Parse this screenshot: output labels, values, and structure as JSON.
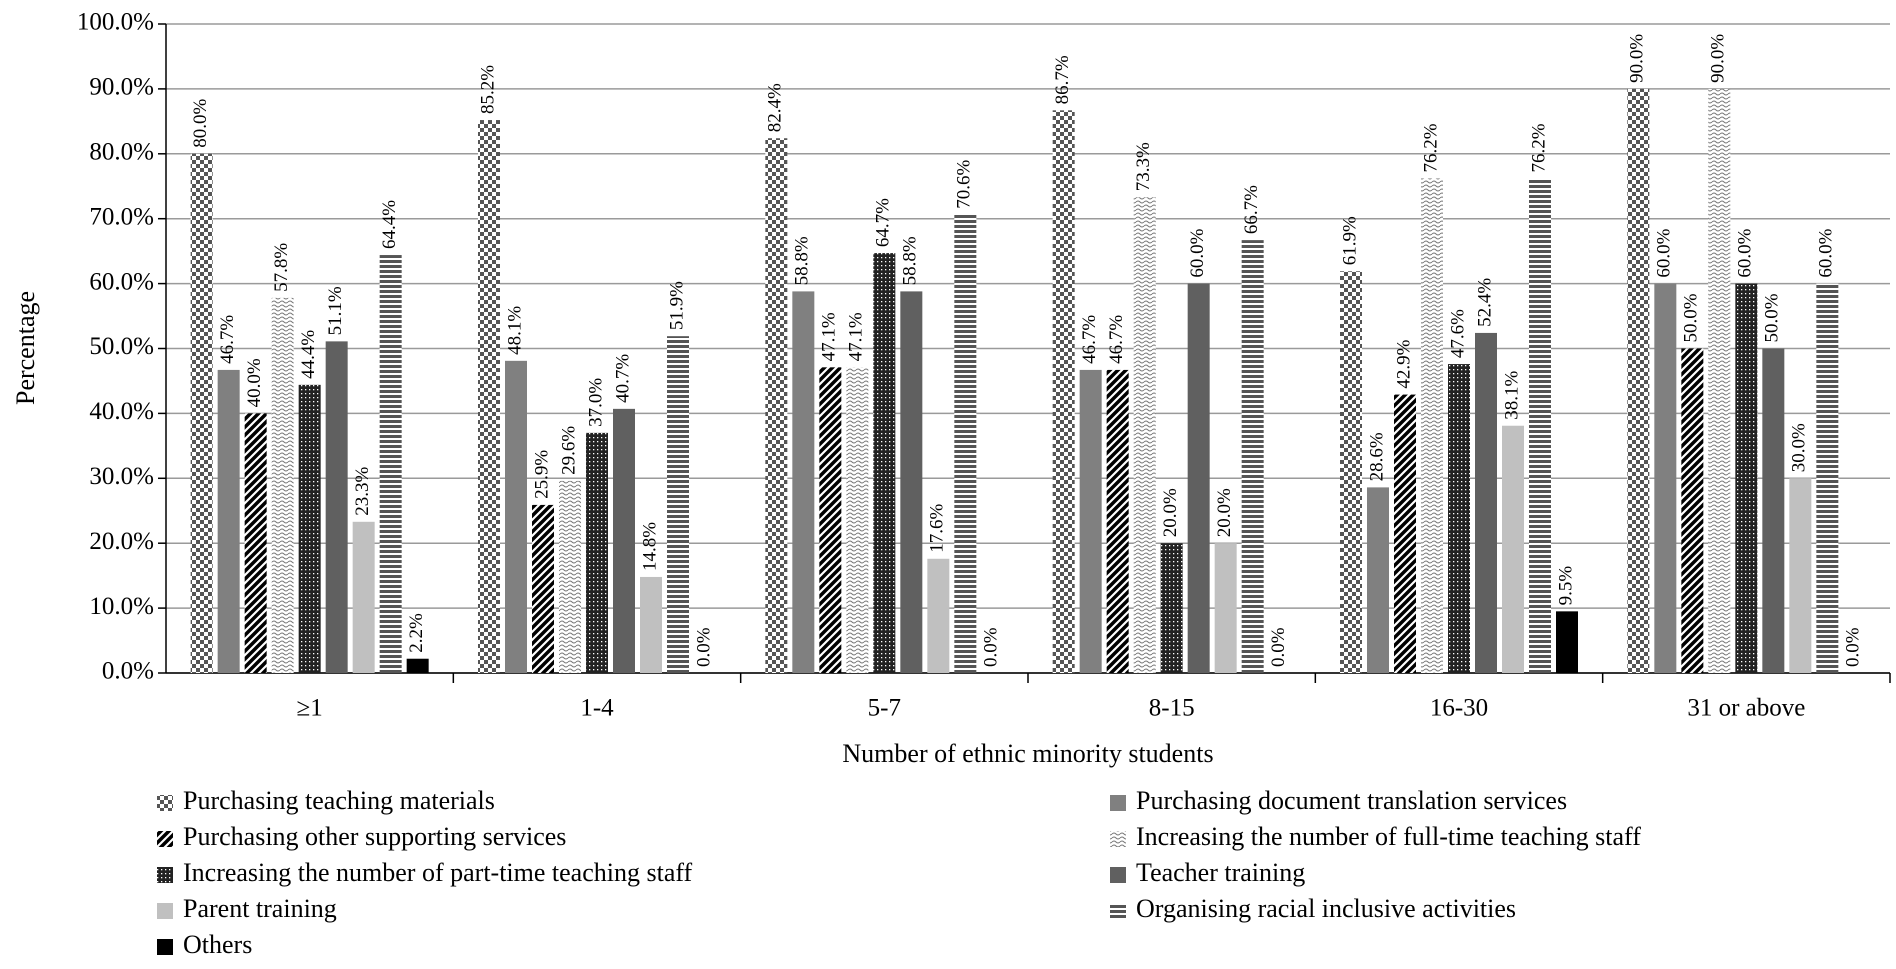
{
  "chart_data": {
    "type": "bar",
    "xlabel": "Number of ethnic minority students",
    "ylabel": "Percentage",
    "categories": [
      "≥1",
      "1-4",
      "5-7",
      "8-15",
      "16-30",
      "31 or above"
    ],
    "ylim": [
      0,
      100
    ],
    "yticks": [
      {
        "value": 0,
        "label": "0.0%"
      },
      {
        "value": 10,
        "label": "10.0%"
      },
      {
        "value": 20,
        "label": "20.0%"
      },
      {
        "value": 30,
        "label": "30.0%"
      },
      {
        "value": 40,
        "label": "40.0%"
      },
      {
        "value": 50,
        "label": "50.0%"
      },
      {
        "value": 60,
        "label": "60.0%"
      },
      {
        "value": 70,
        "label": "70.0%"
      },
      {
        "value": 80,
        "label": "80.0%"
      },
      {
        "value": 90,
        "label": "90.0%"
      },
      {
        "value": 100,
        "label": "100.0%"
      }
    ],
    "grid": true,
    "series": [
      {
        "name": "Purchasing teaching materials",
        "color": "#555555",
        "pattern": "checker",
        "values": [
          80.0,
          85.2,
          82.4,
          86.7,
          61.9,
          90.0
        ],
        "value_labels": [
          "80.0%",
          "85.2%",
          "82.4%",
          "86.7%",
          "61.9%",
          "90.0%"
        ]
      },
      {
        "name": "Purchasing document translation services",
        "color": "#808080",
        "pattern": "solid",
        "values": [
          46.7,
          48.1,
          58.8,
          46.7,
          28.6,
          60.0
        ],
        "value_labels": [
          "46.7%",
          "48.1%",
          "58.8%",
          "46.7%",
          "28.6%",
          "60.0%"
        ]
      },
      {
        "name": "Purchasing other supporting services",
        "color": "#000000",
        "pattern": "diagonal",
        "values": [
          40.0,
          25.9,
          47.1,
          46.7,
          42.9,
          50.0
        ],
        "value_labels": [
          "40.0%",
          "25.9%",
          "47.1%",
          "46.7%",
          "42.9%",
          "50.0%"
        ]
      },
      {
        "name": "Increasing the number of full-time teaching staff",
        "color": "#777777",
        "pattern": "wave",
        "values": [
          57.8,
          29.6,
          47.1,
          73.3,
          76.2,
          90.0
        ],
        "value_labels": [
          "57.8%",
          "29.6%",
          "47.1%",
          "73.3%",
          "76.2%",
          "90.0%"
        ]
      },
      {
        "name": "Increasing the number of part-time teaching staff",
        "color": "#222222",
        "pattern": "dots",
        "values": [
          44.4,
          37.0,
          64.7,
          20.0,
          47.6,
          60.0
        ],
        "value_labels": [
          "44.4%",
          "37.0%",
          "64.7%",
          "20.0%",
          "47.6%",
          "60.0%"
        ]
      },
      {
        "name": "Teacher training",
        "color": "#606060",
        "pattern": "solid",
        "values": [
          51.1,
          40.7,
          58.8,
          60.0,
          52.4,
          50.0
        ],
        "value_labels": [
          "51.1%",
          "40.7%",
          "58.8%",
          "60.0%",
          "52.4%",
          "50.0%"
        ]
      },
      {
        "name": "Parent training",
        "color": "#c0c0c0",
        "pattern": "solid",
        "values": [
          23.3,
          14.8,
          17.6,
          20.0,
          38.1,
          30.0
        ],
        "value_labels": [
          "23.3%",
          "14.8%",
          "17.6%",
          "20.0%",
          "38.1%",
          "30.0%"
        ]
      },
      {
        "name": "Organising racial inclusive activities",
        "color": "#555555",
        "pattern": "horizontal",
        "values": [
          64.4,
          51.9,
          70.6,
          66.7,
          76.2,
          60.0
        ],
        "value_labels": [
          "64.4%",
          "51.9%",
          "70.6%",
          "66.7%",
          "76.2%",
          "60.0%"
        ]
      },
      {
        "name": "Others",
        "color": "#000000",
        "pattern": "solid",
        "values": [
          2.2,
          0.0,
          0.0,
          0.0,
          9.5,
          0.0
        ],
        "value_labels": [
          "2.2%",
          "0.0%",
          "0.0%",
          "0.0%",
          "9.5%",
          "0.0%"
        ]
      }
    ]
  }
}
